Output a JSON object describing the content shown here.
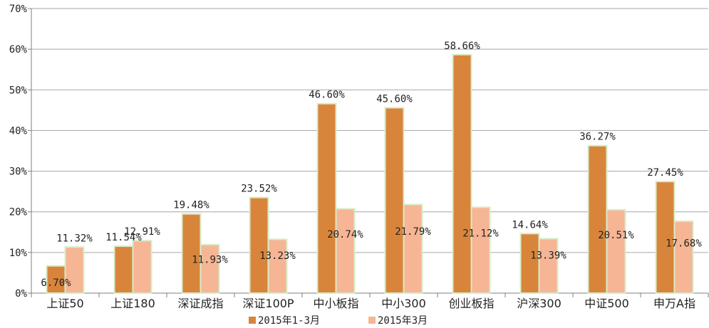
{
  "chart_data": {
    "type": "bar",
    "categories": [
      "上证50",
      "上证180",
      "深证成指",
      "深证100P",
      "中小板指",
      "中小300",
      "创业板指",
      "沪深300",
      "中证500",
      "申万A指"
    ],
    "series": [
      {
        "name": "2015年1-3月",
        "values": [
          6.7,
          11.54,
          19.48,
          23.52,
          46.6,
          45.6,
          58.66,
          14.64,
          36.27,
          27.45
        ],
        "labels": [
          "6.70%",
          "11.54%",
          "19.48%",
          "23.52%",
          "46.60%",
          "45.60%",
          "58.66%",
          "14.64%",
          "36.27%",
          "27.45%"
        ]
      },
      {
        "name": "2015年3月",
        "values": [
          11.32,
          12.91,
          11.93,
          13.23,
          20.74,
          21.79,
          21.12,
          13.39,
          20.51,
          17.68
        ],
        "labels": [
          "11.32%",
          "12.91%",
          "11.93%",
          "13.23%",
          "20.74%",
          "21.79%",
          "21.12%",
          "13.39%",
          "20.51%",
          "17.68%"
        ]
      }
    ],
    "yticks": [
      "0%",
      "10%",
      "20%",
      "30%",
      "40%",
      "50%",
      "60%",
      "70%"
    ],
    "ylim": [
      0,
      70
    ],
    "grid": true,
    "legend_position": "bottom",
    "colors": {
      "series1": "#D8853B",
      "series2": "#F6B594",
      "bar_outline": "#D7ECC8",
      "grid": "#A6A6A6",
      "axis": "#7F7F7F"
    }
  }
}
